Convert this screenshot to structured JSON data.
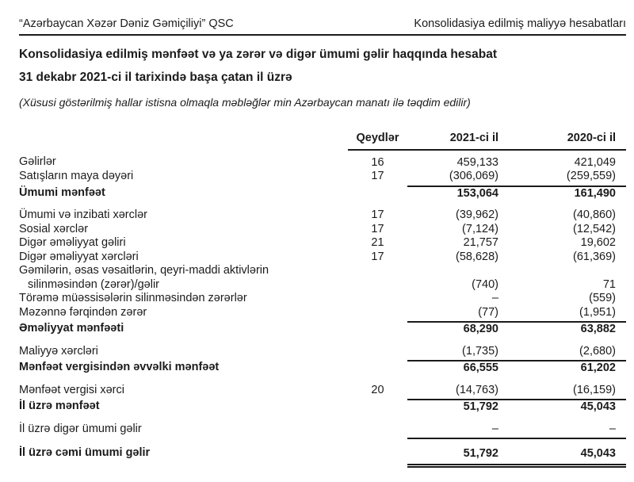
{
  "page": {
    "header_left": "“Azərbaycan Xəzər Dəniz Gəmiçiliyi” QSC",
    "header_right": "Konsolidasiya edilmiş maliyyə hesabatları",
    "title_line1": "Konsolidasiya edilmiş mənfəət və ya zərər və digər ümumi gəlir haqqında hesabat",
    "title_line2": "31 dekabr 2021-ci il tarixində başa çatan il üzrə",
    "presentation_note": "(Xüsusi göstərilmiş hallar istisna olmaqla məbləğlər min Azərbaycan manatı ilə təqdim edilir)"
  },
  "table": {
    "columns": {
      "notes": "Qeydlər",
      "y2021": "2021-ci il",
      "y2020": "2020-ci il"
    },
    "rows": [
      {
        "label": "Gəlirlər",
        "note": "16",
        "v2021": "459,133",
        "v2020": "421,049"
      },
      {
        "label": "Satışların maya dəyəri",
        "note": "17",
        "v2021": "(306,069)",
        "v2020": "(259,559)",
        "underline": "single"
      },
      {
        "label": "Ümumi mənfəət",
        "v2021": "153,064",
        "v2020": "161,490",
        "bold": true
      },
      {
        "label": "Ümumi və inzibati xərclər",
        "note": "17",
        "v2021": "(39,962)",
        "v2020": "(40,860)",
        "gap": true
      },
      {
        "label": "Sosial xərclər",
        "note": "17",
        "v2021": "(7,124)",
        "v2020": "(12,542)"
      },
      {
        "label": "Digər əməliyyat gəliri",
        "note": "21",
        "v2021": "21,757",
        "v2020": "19,602"
      },
      {
        "label": "Digər əməliyyat xərcləri",
        "note": "17",
        "v2021": "(58,628)",
        "v2020": "(61,369)"
      },
      {
        "label": "Gəmilərin, əsas vəsaitlərin, qeyri-maddi aktivlərin",
        "label2": "silinməsindən (zərər)/gəlir",
        "v2021": "(740)",
        "v2020": "71"
      },
      {
        "label": "Törəmə müəssisələrin silinməsindən zərərlər",
        "v2021": "–",
        "v2020": "(559)"
      },
      {
        "label": "Məzənnə fərqindən zərər",
        "v2021": "(77)",
        "v2020": "(1,951)",
        "underline": "single"
      },
      {
        "label": "Əməliyyat mənfəəti",
        "v2021": "68,290",
        "v2020": "63,882",
        "bold": true
      },
      {
        "label": "Maliyyə xərcləri",
        "v2021": "(1,735)",
        "v2020": "(2,680)",
        "underline": "single",
        "gap": true
      },
      {
        "label": "Mənfəət vergisindən əvvəlki mənfəət",
        "v2021": "66,555",
        "v2020": "61,202",
        "bold": true
      },
      {
        "label": "Mənfəət vergisi xərci",
        "note": "20",
        "v2021": "(14,763)",
        "v2020": "(16,159)",
        "underline": "single",
        "gap": true
      },
      {
        "label": "İl üzrə mənfəət",
        "v2021": "51,792",
        "v2020": "45,043",
        "bold": true
      },
      {
        "label": "İl üzrə digər ümumi gəlir",
        "v2021": "–",
        "v2020": "–",
        "underline": "single",
        "gap": true
      },
      {
        "label": "İl üzrə cəmi ümumi gəlir",
        "v2021": "51,792",
        "v2020": "45,043",
        "bold": true,
        "underline": "double",
        "gap": true
      }
    ]
  }
}
